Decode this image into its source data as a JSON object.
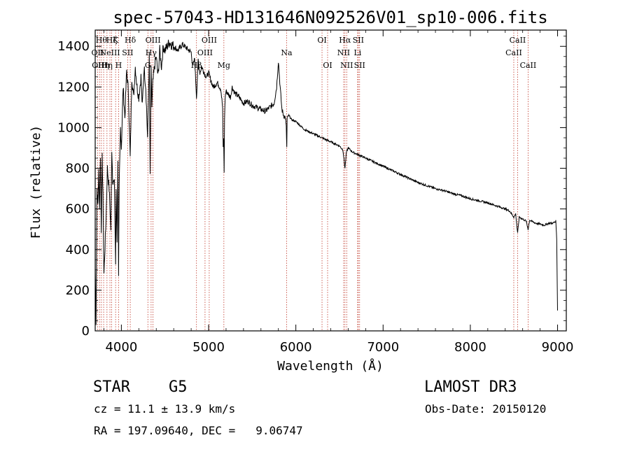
{
  "chart_data": {
    "type": "line",
    "title": "spec-57043-HD131646N092526V01_sp10-006.fits",
    "xlabel": "Wavelength (Å)",
    "ylabel": "Flux (relative)",
    "xlim": [
      3700,
      9100
    ],
    "ylim": [
      0,
      1480
    ],
    "xticks": [
      4000,
      5000,
      6000,
      7000,
      8000,
      9000
    ],
    "yticks": [
      0,
      200,
      400,
      600,
      800,
      1000,
      1200,
      1400
    ],
    "grid": false,
    "series": [
      {
        "name": "flux",
        "x": [
          3700,
          3710,
          3720,
          3730,
          3740,
          3750,
          3760,
          3770,
          3780,
          3790,
          3800,
          3820,
          3840,
          3860,
          3880,
          3890,
          3900,
          3920,
          3934,
          3940,
          3950,
          3960,
          3968,
          3975,
          3990,
          4000,
          4020,
          4040,
          4060,
          4080,
          4101,
          4120,
          4140,
          4160,
          4180,
          4200,
          4225,
          4240,
          4260,
          4280,
          4300,
          4320,
          4330,
          4340,
          4350,
          4360,
          4380,
          4400,
          4420,
          4440,
          4460,
          4480,
          4500,
          4550,
          4600,
          4650,
          4700,
          4750,
          4800,
          4820,
          4840,
          4861,
          4880,
          4900,
          4920,
          4940,
          4960,
          4980,
          5000,
          5050,
          5100,
          5140,
          5160,
          5167,
          5172,
          5178,
          5183,
          5190,
          5200,
          5250,
          5270,
          5300,
          5350,
          5400,
          5450,
          5500,
          5550,
          5600,
          5650,
          5700,
          5750,
          5780,
          5800,
          5820,
          5840,
          5860,
          5880,
          5890,
          5896,
          5900,
          5920,
          5950,
          6000,
          6050,
          6100,
          6150,
          6200,
          6250,
          6300,
          6350,
          6400,
          6450,
          6500,
          6540,
          6563,
          6580,
          6600,
          6650,
          6700,
          6750,
          6800,
          6900,
          7000,
          7100,
          7200,
          7300,
          7400,
          7500,
          7600,
          7700,
          7800,
          7900,
          8000,
          8100,
          8200,
          8300,
          8400,
          8450,
          8498,
          8520,
          8542,
          8560,
          8600,
          8640,
          8662,
          8680,
          8700,
          8750,
          8800,
          8850,
          8900,
          8950,
          8980,
          8990,
          9000
        ],
        "values": [
          300,
          50,
          700,
          620,
          780,
          600,
          870,
          500,
          850,
          650,
          280,
          500,
          800,
          700,
          500,
          900,
          750,
          720,
          330,
          700,
          450,
          850,
          250,
          700,
          1000,
          900,
          1200,
          1050,
          1280,
          1180,
          850,
          1250,
          1150,
          1300,
          1200,
          1150,
          1250,
          1100,
          1300,
          1200,
          950,
          1350,
          750,
          1280,
          1100,
          1220,
          1300,
          1350,
          1250,
          1380,
          1300,
          1400,
          1380,
          1420,
          1400,
          1380,
          1410,
          1390,
          1370,
          1300,
          1340,
          1150,
          1330,
          1270,
          1300,
          1280,
          1260,
          1250,
          1270,
          1200,
          1220,
          1190,
          1100,
          900,
          950,
          780,
          1050,
          1150,
          1180,
          1150,
          1200,
          1170,
          1150,
          1120,
          1130,
          1110,
          1100,
          1090,
          1080,
          1100,
          1120,
          1200,
          1330,
          1200,
          1090,
          1060,
          1050,
          1000,
          900,
          1050,
          1060,
          1040,
          1030,
          1010,
          990,
          980,
          970,
          960,
          950,
          940,
          930,
          920,
          910,
          890,
          800,
          880,
          900,
          880,
          870,
          860,
          850,
          830,
          810,
          790,
          770,
          750,
          730,
          715,
          700,
          690,
          675,
          665,
          650,
          640,
          630,
          615,
          600,
          590,
          560,
          575,
          480,
          560,
          550,
          540,
          500,
          545,
          540,
          530,
          525,
          520,
          530,
          530,
          540,
          450,
          100
        ]
      }
    ],
    "lines": [
      {
        "wave": 3727,
        "labels": [
          "OII"
        ],
        "row": 1
      },
      {
        "wave": 3750,
        "labels": [
          "OIII"
        ],
        "row": 2
      },
      {
        "wave": 3771,
        "labels": [
          "Hθ"
        ],
        "row": 0
      },
      {
        "wave": 3797,
        "labels": [
          "Hη"
        ],
        "row": 2
      },
      {
        "wave": 3835,
        "labels": [
          "Hη"
        ],
        "row": 2
      },
      {
        "wave": 3869,
        "labels": [
          "NeIII"
        ],
        "row": 1
      },
      {
        "wave": 3889,
        "labels": [
          "Hζ"
        ],
        "row": 0
      },
      {
        "wave": 3934,
        "labels": [
          "K"
        ],
        "row": 0
      },
      {
        "wave": 3968,
        "labels": [
          "H"
        ],
        "row": 2
      },
      {
        "wave": 4072,
        "labels": [
          "SII"
        ],
        "row": 1
      },
      {
        "wave": 4102,
        "labels": [
          "Hδ"
        ],
        "row": 0
      },
      {
        "wave": 4304,
        "labels": [
          "G"
        ],
        "row": 2
      },
      {
        "wave": 4341,
        "labels": [
          "Hγ"
        ],
        "row": 1
      },
      {
        "wave": 4363,
        "labels": [
          "OIII"
        ],
        "row": 0
      },
      {
        "wave": 4861,
        "labels": [
          "Hβ"
        ],
        "row": 2
      },
      {
        "wave": 4959,
        "labels": [
          "OIII"
        ],
        "row": 1
      },
      {
        "wave": 5007,
        "labels": [
          "OIII"
        ],
        "row": 0
      },
      {
        "wave": 5175,
        "labels": [
          "Mg"
        ],
        "row": 2
      },
      {
        "wave": 5894,
        "labels": [
          "Na"
        ],
        "row": 1
      },
      {
        "wave": 6300,
        "labels": [
          "OI"
        ],
        "row": 0
      },
      {
        "wave": 6364,
        "labels": [
          "OI"
        ],
        "row": 2
      },
      {
        "wave": 6548,
        "labels": [
          "NII"
        ],
        "row": 1
      },
      {
        "wave": 6563,
        "labels": [
          "Hα"
        ],
        "row": 0
      },
      {
        "wave": 6583,
        "labels": [
          "NII"
        ],
        "row": 2
      },
      {
        "wave": 6708,
        "labels": [
          "Li"
        ],
        "row": 1
      },
      {
        "wave": 6716,
        "labels": [
          "SII"
        ],
        "row": 0
      },
      {
        "wave": 6731,
        "labels": [
          "SII"
        ],
        "row": 2
      },
      {
        "wave": 8498,
        "labels": [
          "CaII"
        ],
        "row": 1
      },
      {
        "wave": 8542,
        "labels": [
          "CaII"
        ],
        "row": 0
      },
      {
        "wave": 8662,
        "labels": [
          "CaII"
        ],
        "row": 2
      }
    ]
  },
  "info": {
    "object_class": "STAR",
    "subclass": "G5",
    "survey": "LAMOST DR3",
    "cz": "cz = 11.1 ± 13.9 km/s",
    "obs_date": "Obs-Date: 20150120",
    "coords": "RA = 197.09640, DEC =   9.06747"
  },
  "colors": {
    "spectrum": "#000000",
    "line_markers": "#c0392b",
    "axes": "#000000"
  }
}
